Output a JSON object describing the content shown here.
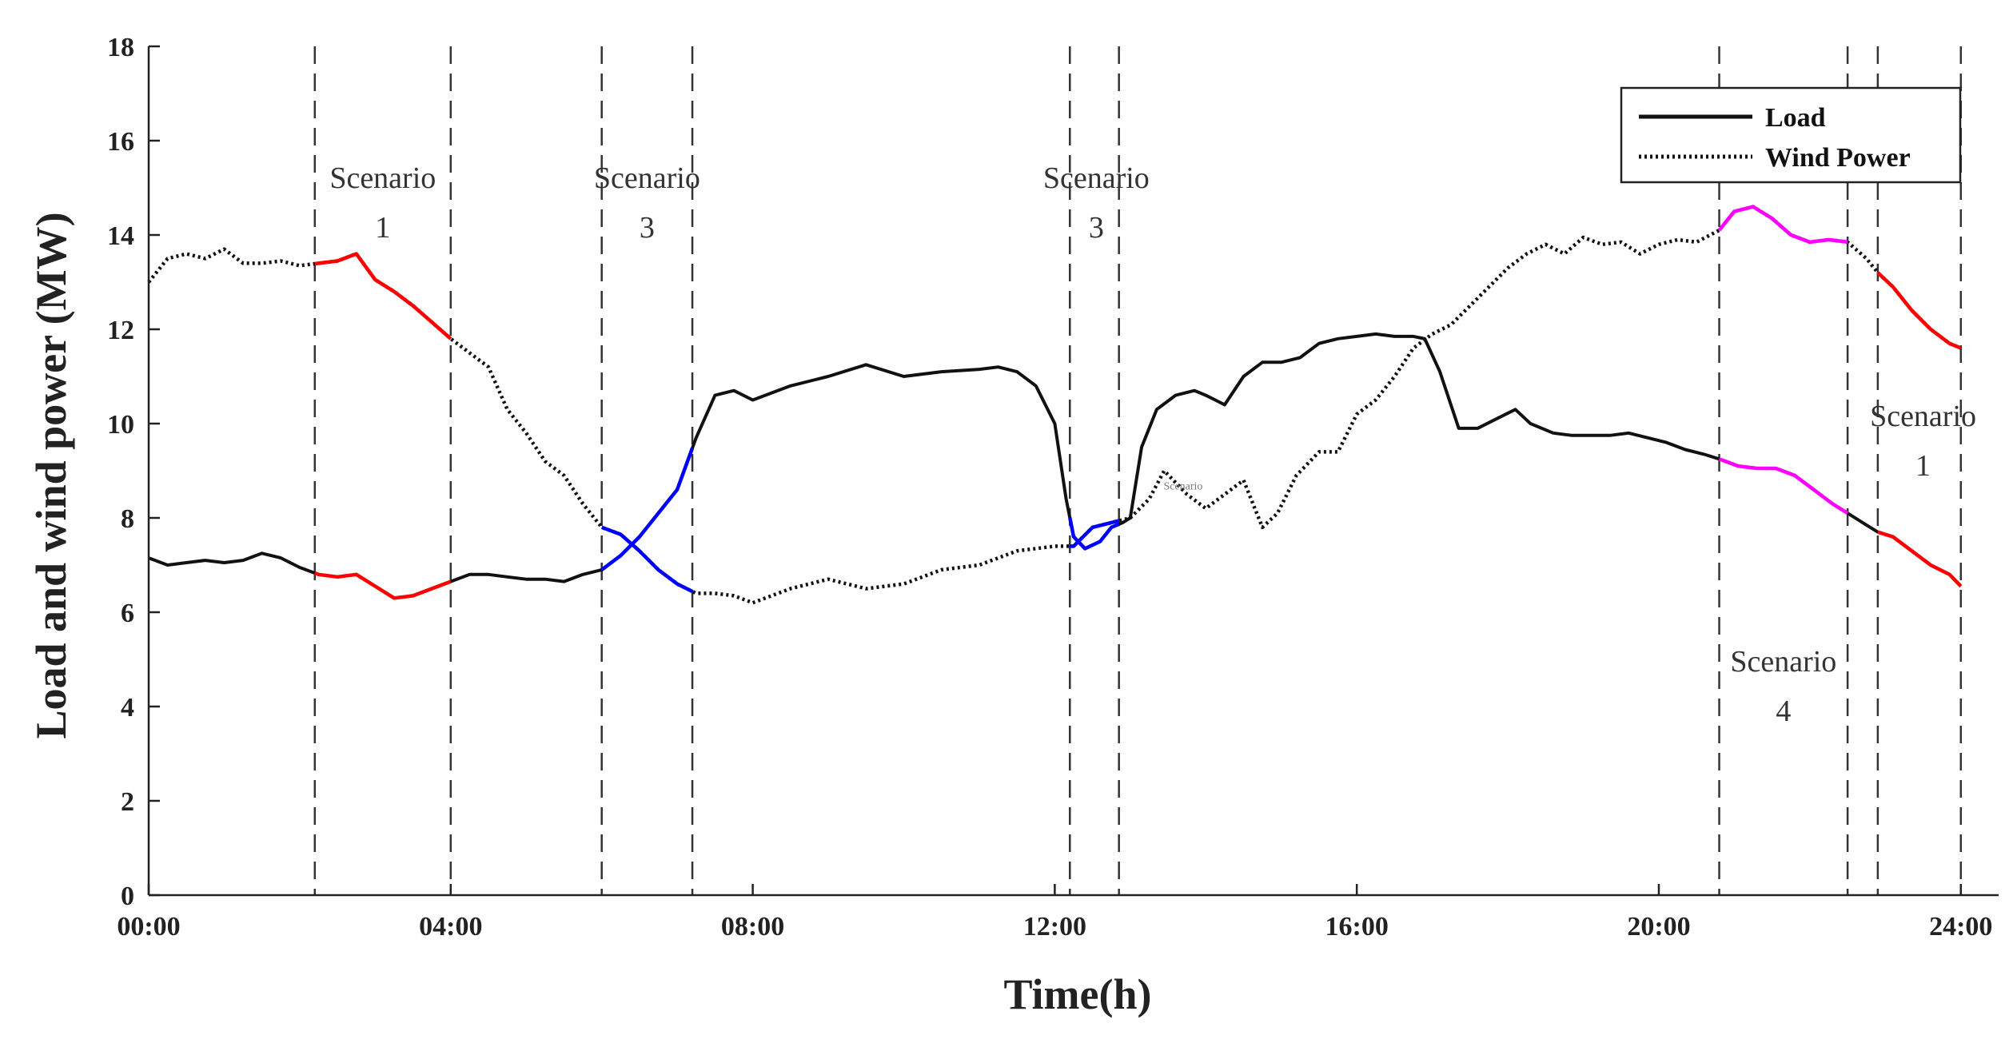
{
  "chart_data": {
    "type": "line",
    "title": "",
    "xlabel": "Time(h)",
    "ylabel": "Load and wind power (MW)",
    "xlim": [
      0,
      24.5
    ],
    "ylim": [
      0,
      18
    ],
    "x_ticks": [
      0,
      4,
      8,
      12,
      16,
      20,
      24
    ],
    "x_tick_labels": [
      "00:00",
      "04:00",
      "08:00",
      "12:00",
      "16:00",
      "20:00",
      "24:00"
    ],
    "y_ticks": [
      0,
      2,
      4,
      6,
      8,
      10,
      12,
      14,
      16,
      18
    ],
    "y_tick_labels": [
      "0",
      "2",
      "4",
      "6",
      "8",
      "10",
      "12",
      "14",
      "16",
      "18"
    ],
    "grid": false,
    "legend": {
      "position": "top-right",
      "entries": [
        {
          "label": "Load",
          "style": "solid"
        },
        {
          "label": "Wind Power",
          "style": "dotted"
        }
      ]
    },
    "series": [
      {
        "name": "Load",
        "style": "solid",
        "x": [
          0,
          0.25,
          0.5,
          0.75,
          1.0,
          1.25,
          1.5,
          1.75,
          2.0,
          2.25,
          2.5,
          2.75,
          3.0,
          3.25,
          3.5,
          3.75,
          4.0,
          4.25,
          4.5,
          4.75,
          5.0,
          5.25,
          5.5,
          5.75,
          6.0,
          6.25,
          6.5,
          6.75,
          7.0,
          7.25,
          7.5,
          7.75,
          8.0,
          8.5,
          9.0,
          9.5,
          10.0,
          10.5,
          11.0,
          11.25,
          11.5,
          11.75,
          12.0,
          12.15,
          12.25,
          12.4,
          12.6,
          12.75,
          12.9,
          13.0,
          13.15,
          13.35,
          13.6,
          13.85,
          14.0,
          14.25,
          14.5,
          14.75,
          15.0,
          15.25,
          15.5,
          15.75,
          16.0,
          16.25,
          16.5,
          16.75,
          16.9,
          17.1,
          17.35,
          17.6,
          17.85,
          18.1,
          18.3,
          18.6,
          18.85,
          19.1,
          19.35,
          19.6,
          19.85,
          20.1,
          20.35,
          20.6,
          20.8,
          21.05,
          21.3,
          21.55,
          21.8,
          22.05,
          22.3,
          22.5,
          22.75,
          22.9,
          23.1,
          23.35,
          23.6,
          23.85,
          24.0
        ],
        "y": [
          7.15,
          7.0,
          7.05,
          7.1,
          7.05,
          7.1,
          7.25,
          7.15,
          6.95,
          6.8,
          6.75,
          6.8,
          6.55,
          6.3,
          6.35,
          6.5,
          6.65,
          6.8,
          6.8,
          6.75,
          6.7,
          6.7,
          6.65,
          6.8,
          6.9,
          7.2,
          7.6,
          8.1,
          8.6,
          9.7,
          10.6,
          10.7,
          10.5,
          10.8,
          11.0,
          11.25,
          11.0,
          11.1,
          11.15,
          11.2,
          11.1,
          10.8,
          10.0,
          8.4,
          7.6,
          7.35,
          7.5,
          7.8,
          7.9,
          8.0,
          9.5,
          10.3,
          10.6,
          10.7,
          10.6,
          10.4,
          11.0,
          11.3,
          11.3,
          11.4,
          11.7,
          11.8,
          11.85,
          11.9,
          11.85,
          11.85,
          11.8,
          11.1,
          9.9,
          9.9,
          10.1,
          10.3,
          10.0,
          9.8,
          9.75,
          9.75,
          9.75,
          9.8,
          9.7,
          9.6,
          9.45,
          9.35,
          9.25,
          9.1,
          9.05,
          9.05,
          8.9,
          8.6,
          8.3,
          8.1,
          7.85,
          7.7,
          7.6,
          7.3,
          7.0,
          6.8,
          6.55
        ]
      },
      {
        "name": "Wind Power",
        "style": "dotted",
        "x": [
          0,
          0.25,
          0.5,
          0.75,
          1.0,
          1.25,
          1.5,
          1.75,
          2.0,
          2.25,
          2.5,
          2.75,
          3.0,
          3.25,
          3.5,
          3.75,
          4.0,
          4.25,
          4.5,
          4.75,
          5.0,
          5.25,
          5.5,
          5.75,
          6.0,
          6.25,
          6.5,
          6.75,
          7.0,
          7.25,
          7.5,
          7.75,
          8.0,
          8.5,
          9.0,
          9.5,
          10.0,
          10.5,
          11.0,
          11.5,
          12.0,
          12.25,
          12.5,
          12.75,
          13.0,
          13.25,
          13.45,
          13.75,
          14.0,
          14.25,
          14.5,
          14.75,
          14.95,
          15.2,
          15.5,
          15.75,
          16.0,
          16.25,
          16.5,
          16.75,
          17.0,
          17.25,
          17.5,
          17.75,
          18.0,
          18.25,
          18.5,
          18.75,
          19.0,
          19.25,
          19.5,
          19.75,
          20.0,
          20.25,
          20.5,
          20.8,
          21.0,
          21.25,
          21.5,
          21.75,
          22.0,
          22.25,
          22.5,
          22.75,
          22.9,
          23.1,
          23.35,
          23.6,
          23.85,
          24.0
        ],
        "y": [
          13.0,
          13.5,
          13.6,
          13.5,
          13.7,
          13.4,
          13.4,
          13.45,
          13.35,
          13.4,
          13.45,
          13.6,
          13.05,
          12.8,
          12.5,
          12.15,
          11.8,
          11.5,
          11.2,
          10.3,
          9.8,
          9.2,
          8.9,
          8.3,
          7.8,
          7.65,
          7.3,
          6.9,
          6.6,
          6.4,
          6.4,
          6.35,
          6.2,
          6.5,
          6.7,
          6.5,
          6.6,
          6.9,
          7.0,
          7.3,
          7.4,
          7.4,
          7.8,
          7.9,
          8.0,
          8.4,
          9.0,
          8.5,
          8.2,
          8.5,
          8.8,
          7.8,
          8.1,
          8.9,
          9.4,
          9.4,
          10.2,
          10.5,
          11.0,
          11.6,
          11.9,
          12.1,
          12.5,
          12.9,
          13.3,
          13.6,
          13.8,
          13.6,
          13.95,
          13.8,
          13.85,
          13.6,
          13.8,
          13.9,
          13.85,
          14.1,
          14.5,
          14.6,
          14.35,
          14.0,
          13.85,
          13.9,
          13.85,
          13.5,
          13.2,
          12.9,
          12.4,
          12.0,
          11.7,
          11.6
        ]
      }
    ],
    "scenario_boundaries": [
      2.2,
      4.0,
      6.0,
      7.2,
      12.2,
      12.85,
      20.8,
      22.5,
      22.9,
      24.0
    ],
    "highlights": [
      {
        "from": 2.2,
        "to": 4.0,
        "color": "#ff0000",
        "series": [
          "Load",
          "Wind Power"
        ]
      },
      {
        "from": 6.0,
        "to": 7.2,
        "color": "#0000ff",
        "series": [
          "Load",
          "Wind Power"
        ]
      },
      {
        "from": 12.2,
        "to": 12.85,
        "color": "#0000ff",
        "series": [
          "Load",
          "Wind Power"
        ]
      },
      {
        "from": 20.8,
        "to": 22.5,
        "color": "#ff00ff",
        "series": [
          "Load",
          "Wind Power"
        ]
      },
      {
        "from": 22.9,
        "to": 24.0,
        "color": "#ff0000",
        "series": [
          "Load",
          "Wind Power"
        ]
      }
    ],
    "annotations": [
      {
        "lines": [
          "Scenario",
          "1"
        ],
        "x": 3.1,
        "y": 15.0
      },
      {
        "lines": [
          "Scenario",
          "3"
        ],
        "x": 6.6,
        "y": 15.0
      },
      {
        "lines": [
          "Scenario",
          "3"
        ],
        "x": 12.55,
        "y": 15.0
      },
      {
        "lines": [
          "Scenario",
          "4"
        ],
        "x": 21.65,
        "y": 4.75
      },
      {
        "lines": [
          "Scenario",
          "1"
        ],
        "x": 23.5,
        "y": 9.95
      },
      {
        "lines": [
          "Scenario"
        ],
        "x": 13.7,
        "y": 8.6,
        "small": true
      }
    ],
    "colors": {
      "axes": "#222222",
      "line": "#111111",
      "boundary": "#333333",
      "scenario_1": "#ff0000",
      "scenario_3": "#0000ff",
      "scenario_4": "#ff00ff"
    }
  }
}
